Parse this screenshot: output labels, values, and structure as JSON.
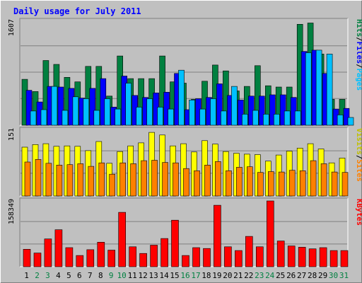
{
  "chart_data": {
    "type": "bar",
    "title": "Daily usage for July 2011",
    "categories": [
      "1",
      "2",
      "3",
      "4",
      "5",
      "6",
      "7",
      "8",
      "9",
      "10",
      "11",
      "12",
      "13",
      "14",
      "15",
      "16",
      "17",
      "18",
      "19",
      "20",
      "21",
      "22",
      "23",
      "24",
      "25",
      "26",
      "27",
      "28",
      "29",
      "30",
      "31"
    ],
    "weekend_days": [
      "2",
      "3",
      "9",
      "10",
      "16",
      "17",
      "23",
      "24",
      "30",
      "31"
    ],
    "panels": [
      {
        "id": "pages-files-hits",
        "scale_label": "1607",
        "scale_max": 1607,
        "series": [
          {
            "name": "Hits",
            "color": "#008040",
            "values": [
              710,
              520,
              1000,
              940,
              740,
              670,
              910,
              910,
              450,
              1070,
              720,
              720,
              720,
              1070,
              670,
              650,
              400,
              680,
              930,
              840,
              530,
              600,
              920,
              610,
              590,
              590,
              1560,
              1580,
              1100,
              400,
              400
            ]
          },
          {
            "name": "Files",
            "color": "#0000ff",
            "values": [
              540,
              360,
              600,
              590,
              570,
              420,
              570,
              720,
              280,
              760,
              460,
              430,
              500,
              510,
              800,
              240,
              410,
              430,
              640,
              460,
              390,
              450,
              450,
              470,
              470,
              430,
              1140,
              1160,
              800,
              250,
              260
            ]
          },
          {
            "name": "Pages",
            "color": "#00c0ff",
            "values": [
              220,
              240,
              600,
              230,
              440,
              410,
              230,
              410,
              250,
              650,
              280,
              410,
              280,
              250,
              850,
              390,
              250,
              410,
              220,
              600,
              170,
              230,
              170,
              170,
              220,
              220,
              1120,
              1160,
              1100,
              160,
              120
            ]
          }
        ]
      },
      {
        "id": "visits-sites",
        "scale_label": "151",
        "scale_max": 151,
        "series": [
          {
            "name": "Visits",
            "color": "#ffff00",
            "values": [
              112,
              118,
              120,
              114,
              115,
              114,
              104,
              125,
              75,
              102,
              115,
              122,
              146,
              140,
              115,
              120,
              101,
              127,
              119,
              102,
              98,
              96,
              95,
              80,
              94,
              103,
              110,
              120,
              108,
              76,
              87
            ]
          },
          {
            "name": "Sites",
            "color": "#ff8000",
            "values": [
              78,
              84,
              75,
              71,
              72,
              74,
              68,
              76,
              50,
              76,
              74,
              81,
              82,
              77,
              76,
              63,
              58,
              71,
              79,
              58,
              66,
              67,
              54,
              56,
              55,
              59,
              58,
              81,
              74,
              55,
              54
            ]
          }
        ]
      },
      {
        "id": "kbytes",
        "scale_label": "158349",
        "scale_max": 158349,
        "series": [
          {
            "name": "KBytes",
            "color": "#ff0000",
            "values": [
              42000,
              33000,
              67000,
              89000,
              46000,
              27000,
              41000,
              59000,
              40000,
              131000,
              48000,
              32000,
              52000,
              68000,
              112000,
              27000,
              46000,
              44000,
              148000,
              48000,
              39000,
              73000,
              48000,
              159000,
              62000,
              50000,
              47000,
              43000,
              46000,
              39000,
              39000
            ]
          }
        ]
      }
    ],
    "legend": [
      {
        "text": "Pages",
        "color": "#00c0ff",
        "panel": "pages-files-hits"
      },
      {
        "text": "/",
        "color": "#000000",
        "panel": "pages-files-hits"
      },
      {
        "text": "Files",
        "color": "#0000ff",
        "panel": "pages-files-hits"
      },
      {
        "text": "/",
        "color": "#000000",
        "panel": "pages-files-hits"
      },
      {
        "text": "Hits",
        "color": "#008040",
        "panel": "pages-files-hits"
      },
      {
        "text": "Sites",
        "color": "#ff8000",
        "panel": "visits-sites"
      },
      {
        "text": "/",
        "color": "#000000",
        "panel": "visits-sites"
      },
      {
        "text": "Visits",
        "color": "#c0c000",
        "panel": "visits-sites"
      },
      {
        "text": "KBytes",
        "color": "#ff0000",
        "panel": "kbytes"
      }
    ],
    "colors": {
      "background": "#c0c0c0",
      "title": "#0000ff",
      "weekday_label": "#000000",
      "weekend_label": "#008040",
      "grid": "#808080"
    }
  }
}
